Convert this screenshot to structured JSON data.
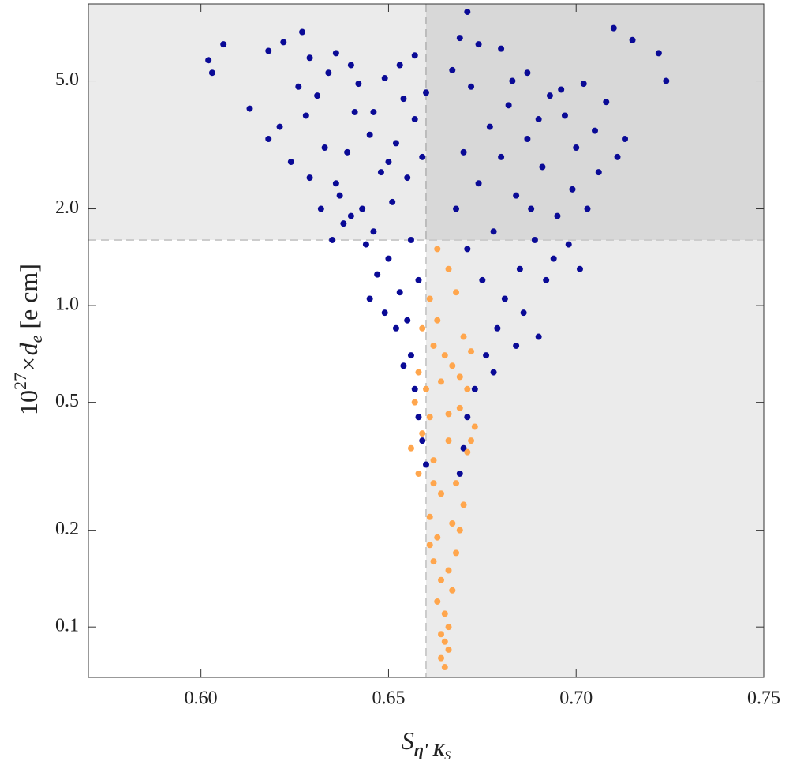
{
  "chart_data": {
    "type": "scatter",
    "xlabel": {
      "base": "S",
      "sub": "η' K",
      "subsub": "S"
    },
    "ylabel": {
      "base": "10",
      "sup": "27",
      "mid": "×d",
      "sub": "e",
      "tail": " [e cm]"
    },
    "xlim": [
      0.57,
      0.75
    ],
    "ylim": [
      0.0697,
      8.68
    ],
    "log_y": true,
    "xticks": [
      {
        "value": 0.6,
        "label": "0.60"
      },
      {
        "value": 0.65,
        "label": "0.65"
      },
      {
        "value": 0.7,
        "label": "0.70"
      },
      {
        "value": 0.75,
        "label": "0.75"
      }
    ],
    "yticks": [
      0.1,
      0.2,
      0.5,
      {
        "value": 1,
        "label": "1.0"
      },
      {
        "value": 2,
        "label": "2.0"
      },
      {
        "value": 5,
        "label": "5.0"
      }
    ],
    "shading": [
      {
        "x_from": 0.66,
        "color": "rgba(0,0,0,0.08)"
      },
      {
        "y_from": 1.6,
        "color": "rgba(0,0,0,0.08)"
      }
    ],
    "series": [
      {
        "color": "#0a0a96",
        "x": [
          0.602,
          0.603,
          0.606,
          0.618,
          0.622,
          0.627,
          0.613,
          0.618,
          0.621,
          0.624,
          0.628,
          0.631,
          0.634,
          0.636,
          0.639,
          0.641,
          0.643,
          0.645,
          0.646,
          0.648,
          0.649,
          0.65,
          0.651,
          0.652,
          0.653,
          0.654,
          0.655,
          0.655,
          0.656,
          0.656,
          0.657,
          0.657,
          0.658,
          0.658,
          0.659,
          0.659,
          0.66,
          0.66,
          0.647,
          0.644,
          0.64,
          0.637,
          0.633,
          0.629,
          0.626,
          0.642,
          0.652,
          0.654,
          0.649,
          0.645,
          0.638,
          0.635,
          0.632,
          0.65,
          0.646,
          0.64,
          0.653,
          0.636,
          0.657,
          0.629,
          0.724,
          0.722,
          0.715,
          0.71,
          0.711,
          0.708,
          0.705,
          0.702,
          0.699,
          0.697,
          0.695,
          0.693,
          0.691,
          0.689,
          0.687,
          0.685,
          0.684,
          0.682,
          0.681,
          0.68,
          0.679,
          0.678,
          0.677,
          0.676,
          0.675,
          0.674,
          0.673,
          0.672,
          0.671,
          0.671,
          0.67,
          0.67,
          0.669,
          0.668,
          0.667,
          0.683,
          0.69,
          0.694,
          0.698,
          0.7,
          0.686,
          0.688,
          0.692,
          0.703,
          0.706,
          0.713,
          0.696,
          0.687,
          0.68,
          0.674,
          0.671,
          0.69,
          0.684,
          0.678,
          0.669,
          0.701
        ],
        "values": [
          5.8,
          5.3,
          6.5,
          6.2,
          6.6,
          7.1,
          4.1,
          3.3,
          3.6,
          2.8,
          3.9,
          4.5,
          5.3,
          2.4,
          3.0,
          4.0,
          2.0,
          3.4,
          1.7,
          2.6,
          5.1,
          1.4,
          2.1,
          3.2,
          1.1,
          4.4,
          0.9,
          2.5,
          0.7,
          1.6,
          0.55,
          3.8,
          0.45,
          1.2,
          0.38,
          2.9,
          0.32,
          4.6,
          1.25,
          1.55,
          1.9,
          2.2,
          3.1,
          2.5,
          4.8,
          4.9,
          0.85,
          0.65,
          0.95,
          1.05,
          1.8,
          1.6,
          2.0,
          2.8,
          4.0,
          5.6,
          5.6,
          6.1,
          6.0,
          5.9,
          5.0,
          6.1,
          6.7,
          7.3,
          2.9,
          4.3,
          3.5,
          4.9,
          2.3,
          3.9,
          1.9,
          4.5,
          2.7,
          1.6,
          3.3,
          1.3,
          2.2,
          4.2,
          1.05,
          2.9,
          0.85,
          1.7,
          3.6,
          0.7,
          1.2,
          2.4,
          0.55,
          4.8,
          0.45,
          1.5,
          0.36,
          3.0,
          0.3,
          2.0,
          5.4,
          5.0,
          3.8,
          1.4,
          1.55,
          3.1,
          0.95,
          2.0,
          1.2,
          2.0,
          2.6,
          3.3,
          4.7,
          5.3,
          6.3,
          6.5,
          8.2,
          0.8,
          0.75,
          0.62,
          6.8,
          1.3
        ]
      },
      {
        "color": "#ffa64d",
        "x": [
          0.663,
          0.666,
          0.661,
          0.668,
          0.659,
          0.67,
          0.662,
          0.672,
          0.658,
          0.667,
          0.664,
          0.671,
          0.657,
          0.669,
          0.661,
          0.673,
          0.659,
          0.666,
          0.671,
          0.662,
          0.658,
          0.668,
          0.664,
          0.67,
          0.661,
          0.667,
          0.663,
          0.668,
          0.662,
          0.666,
          0.664,
          0.667,
          0.663,
          0.665,
          0.666,
          0.664,
          0.665,
          0.666,
          0.664,
          0.665,
          0.663,
          0.665,
          0.66,
          0.672,
          0.656,
          0.669,
          0.666,
          0.662,
          0.669,
          0.661
        ],
        "values": [
          1.5,
          1.3,
          1.05,
          1.1,
          0.85,
          0.8,
          0.75,
          0.72,
          0.62,
          0.65,
          0.58,
          0.55,
          0.5,
          0.48,
          0.45,
          0.42,
          0.4,
          0.38,
          0.35,
          0.33,
          0.3,
          0.28,
          0.26,
          0.24,
          0.22,
          0.21,
          0.19,
          0.17,
          0.16,
          0.15,
          0.14,
          0.13,
          0.12,
          0.11,
          0.1,
          0.095,
          0.09,
          0.085,
          0.08,
          0.075,
          0.9,
          0.7,
          0.55,
          0.38,
          0.36,
          0.6,
          0.46,
          0.28,
          0.2,
          0.18
        ]
      }
    ]
  }
}
